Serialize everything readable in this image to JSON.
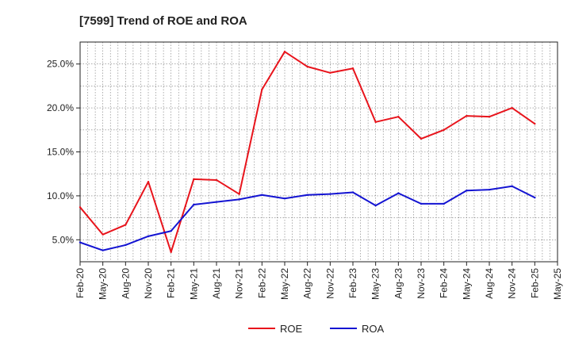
{
  "chart_data": {
    "type": "line",
    "title": "[7599]  Trend of ROE and ROA",
    "x": [
      "Feb-20",
      "May-20",
      "Aug-20",
      "Nov-20",
      "Feb-21",
      "May-21",
      "Aug-21",
      "Nov-21",
      "Feb-22",
      "May-22",
      "Aug-22",
      "Nov-22",
      "Feb-23",
      "May-23",
      "Aug-23",
      "Nov-23",
      "Feb-24",
      "May-24",
      "Aug-24",
      "Nov-24",
      "Feb-25",
      "May-25"
    ],
    "series": [
      {
        "name": "ROE",
        "color": "#e8141c",
        "values": [
          8.7,
          5.6,
          6.7,
          11.6,
          3.6,
          11.9,
          11.8,
          10.2,
          22.1,
          26.4,
          24.7,
          24.0,
          24.5,
          18.4,
          19.0,
          16.5,
          17.5,
          19.1,
          19.0,
          20.0,
          18.2,
          null
        ]
      },
      {
        "name": "ROA",
        "color": "#1414d2",
        "values": [
          4.7,
          3.8,
          4.4,
          5.4,
          6.0,
          9.0,
          9.3,
          9.6,
          10.1,
          9.7,
          10.1,
          10.2,
          10.4,
          8.9,
          10.3,
          9.1,
          9.1,
          10.6,
          10.7,
          11.1,
          9.8,
          null
        ]
      }
    ],
    "yticks": [
      5.0,
      10.0,
      15.0,
      20.0,
      25.0
    ],
    "ytick_labels": [
      "5.0%",
      "10.0%",
      "15.0%",
      "20.0%",
      "25.0%"
    ],
    "ylim": [
      2.5,
      27.5
    ],
    "xlabel": "",
    "ylabel": "",
    "grid": true,
    "legend": "bottom-center"
  }
}
